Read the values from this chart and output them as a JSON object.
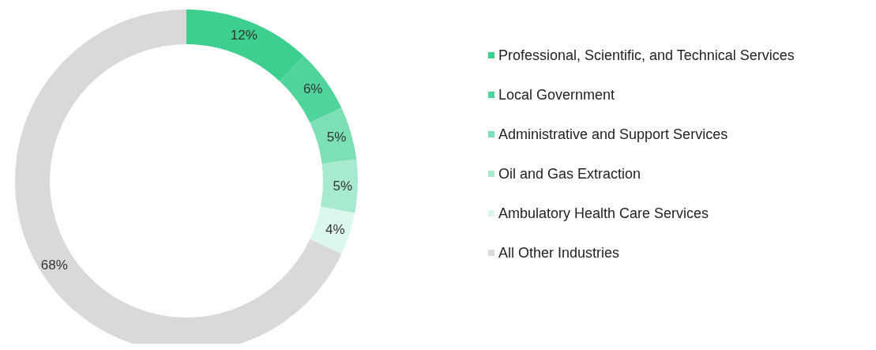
{
  "chart_data": {
    "type": "donut",
    "categories": [
      "Professional, Scientific, and Technical Services",
      "Local Government",
      "Administrative and Support Services",
      "Oil and Gas Extraction",
      "Ambulatory Health Care Services",
      "All Other Industries"
    ],
    "values": [
      12,
      6,
      5,
      5,
      4,
      68
    ],
    "value_labels": [
      "12%",
      "6%",
      "5%",
      "5%",
      "4%",
      "68%"
    ],
    "colors": [
      "#3ccf8e",
      "#4fd59c",
      "#7ddfb4",
      "#a8ead0",
      "#dcf7ec",
      "#d9d9d9"
    ],
    "legend": "right"
  }
}
